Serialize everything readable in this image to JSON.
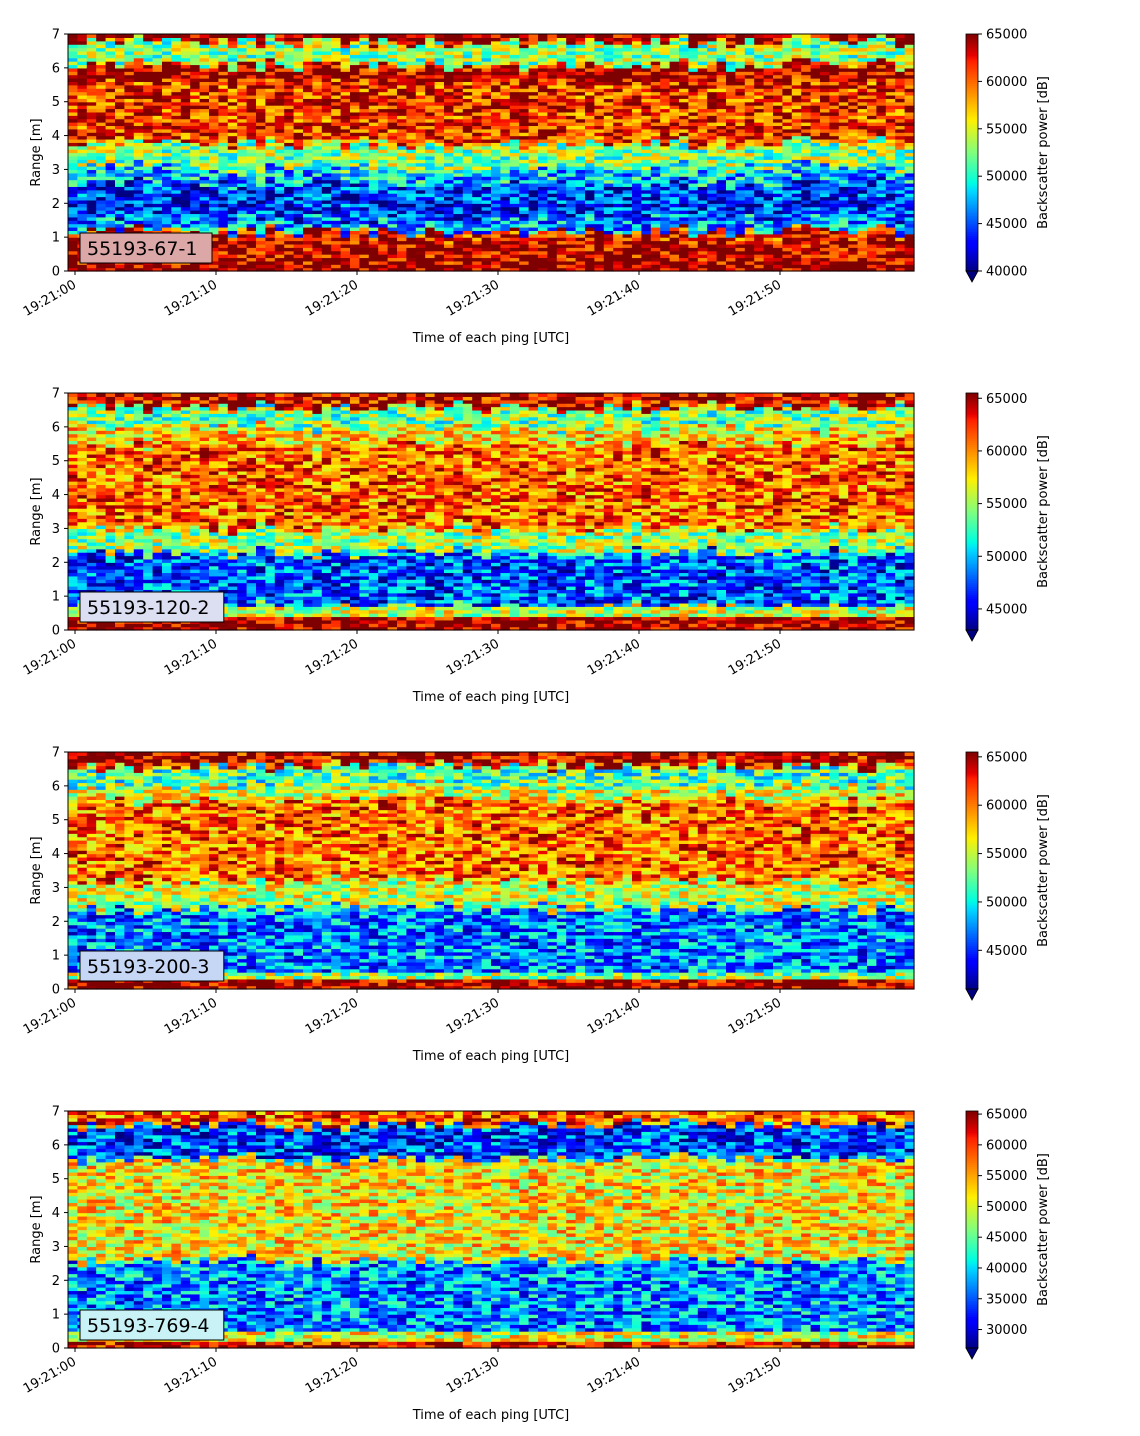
{
  "colormap": "jet",
  "colormap_stops": [
    "#00007f",
    "#0000ff",
    "#007fff",
    "#00ffff",
    "#7fff7f",
    "#ffff00",
    "#ff7f00",
    "#ff0000",
    "#7f0000"
  ],
  "chart_data": [
    {
      "type": "heatmap",
      "label": "55193-67-1",
      "label_box_color": "#dba7a7",
      "xlabel": "Time of each ping [UTC]",
      "ylabel": "Range [m]",
      "colorbar_label": "Backscatter power [dB]",
      "x_ticks": [
        "19:21:00",
        "19:21:10",
        "19:21:20",
        "19:21:30",
        "19:21:40",
        "19:21:50"
      ],
      "x_range_seconds": [
        0,
        60
      ],
      "y_ticks": [
        "0",
        "1",
        "2",
        "3",
        "4",
        "5",
        "6",
        "7"
      ],
      "ylim": [
        0,
        7
      ],
      "clim": [
        40000,
        65000
      ],
      "colorbar_ticks": [
        "40000",
        "45000",
        "50000",
        "55000",
        "60000",
        "65000"
      ],
      "colorbar_extend": "min",
      "range_profile": [
        {
          "range": [
            0.0,
            0.25
          ],
          "value": 65000
        },
        {
          "range": [
            0.25,
            1.0
          ],
          "value": 64000
        },
        {
          "range": [
            1.0,
            1.2
          ],
          "value": 62000
        },
        {
          "range": [
            1.2,
            1.6
          ],
          "value": 47000
        },
        {
          "range": [
            1.6,
            2.6
          ],
          "value": 44000
        },
        {
          "range": [
            2.6,
            3.1
          ],
          "value": 48000
        },
        {
          "range": [
            3.1,
            3.8
          ],
          "value": 53000
        },
        {
          "range": [
            3.8,
            5.6
          ],
          "value": 61500
        },
        {
          "range": [
            5.6,
            6.1
          ],
          "value": 64500
        },
        {
          "range": [
            6.1,
            6.8
          ],
          "value": 53000
        },
        {
          "range": [
            6.8,
            7.0
          ],
          "value": 65000
        }
      ]
    },
    {
      "type": "heatmap",
      "label": "55193-120-2",
      "label_box_color": "#dcdff2",
      "xlabel": "Time of each ping [UTC]",
      "ylabel": "Range [m]",
      "colorbar_label": "Backscatter power [dB]",
      "x_ticks": [
        "19:21:00",
        "19:21:10",
        "19:21:20",
        "19:21:30",
        "19:21:40",
        "19:21:50"
      ],
      "x_range_seconds": [
        0,
        60
      ],
      "y_ticks": [
        "0",
        "1",
        "2",
        "3",
        "4",
        "5",
        "6",
        "7"
      ],
      "ylim": [
        0,
        7
      ],
      "clim": [
        43000,
        65500
      ],
      "colorbar_ticks": [
        "45000",
        "50000",
        "55000",
        "60000",
        "65000"
      ],
      "colorbar_extend": "min",
      "range_profile": [
        {
          "range": [
            0.0,
            0.4
          ],
          "value": 65000
        },
        {
          "range": [
            0.4,
            0.7
          ],
          "value": 56000
        },
        {
          "range": [
            0.7,
            2.3
          ],
          "value": 47500
        },
        {
          "range": [
            2.3,
            3.0
          ],
          "value": 55000
        },
        {
          "range": [
            3.0,
            5.5
          ],
          "value": 61000
        },
        {
          "range": [
            5.5,
            6.0
          ],
          "value": 58000
        },
        {
          "range": [
            6.0,
            6.6
          ],
          "value": 54000
        },
        {
          "range": [
            6.6,
            7.0
          ],
          "value": 64000
        }
      ]
    },
    {
      "type": "heatmap",
      "label": "55193-200-3",
      "label_box_color": "#c6d6f5",
      "xlabel": "Time of each ping [UTC]",
      "ylabel": "Range [m]",
      "colorbar_label": "Backscatter power [dB]",
      "x_ticks": [
        "19:21:00",
        "19:21:10",
        "19:21:20",
        "19:21:30",
        "19:21:40",
        "19:21:50"
      ],
      "x_range_seconds": [
        0,
        60
      ],
      "y_ticks": [
        "0",
        "1",
        "2",
        "3",
        "4",
        "5",
        "6",
        "7"
      ],
      "ylim": [
        0,
        7
      ],
      "clim": [
        41000,
        65500
      ],
      "colorbar_ticks": [
        "45000",
        "50000",
        "55000",
        "60000",
        "65000"
      ],
      "colorbar_extend": "min",
      "range_profile": [
        {
          "range": [
            0.0,
            0.35
          ],
          "value": 65000
        },
        {
          "range": [
            0.35,
            0.5
          ],
          "value": 54000
        },
        {
          "range": [
            0.5,
            2.4
          ],
          "value": 47000
        },
        {
          "range": [
            2.4,
            3.2
          ],
          "value": 55000
        },
        {
          "range": [
            3.2,
            5.6
          ],
          "value": 60500
        },
        {
          "range": [
            5.6,
            6.0
          ],
          "value": 56000
        },
        {
          "range": [
            6.0,
            6.6
          ],
          "value": 52000
        },
        {
          "range": [
            6.6,
            7.0
          ],
          "value": 64000
        }
      ]
    },
    {
      "type": "heatmap",
      "label": "55193-769-4",
      "label_box_color": "#c8f2f5",
      "xlabel": "Time of each ping [UTC]",
      "ylabel": "Range [m]",
      "colorbar_label": "Backscatter power [dB]",
      "x_ticks": [
        "19:21:00",
        "19:21:10",
        "19:21:20",
        "19:21:30",
        "19:21:40",
        "19:21:50"
      ],
      "x_range_seconds": [
        0,
        60
      ],
      "y_ticks": [
        "0",
        "1",
        "2",
        "3",
        "4",
        "5",
        "6",
        "7"
      ],
      "ylim": [
        0,
        7
      ],
      "clim": [
        27000,
        65500
      ],
      "colorbar_ticks": [
        "30000",
        "35000",
        "40000",
        "45000",
        "50000",
        "55000",
        "60000",
        "65000"
      ],
      "colorbar_extend": "min",
      "range_profile": [
        {
          "range": [
            0.0,
            0.2
          ],
          "value": 63000
        },
        {
          "range": [
            0.2,
            0.5
          ],
          "value": 50000
        },
        {
          "range": [
            0.5,
            2.6
          ],
          "value": 37000
        },
        {
          "range": [
            2.6,
            5.6
          ],
          "value": 52000
        },
        {
          "range": [
            5.6,
            6.6
          ],
          "value": 34000
        },
        {
          "range": [
            6.6,
            7.0
          ],
          "value": 58000
        }
      ]
    }
  ]
}
